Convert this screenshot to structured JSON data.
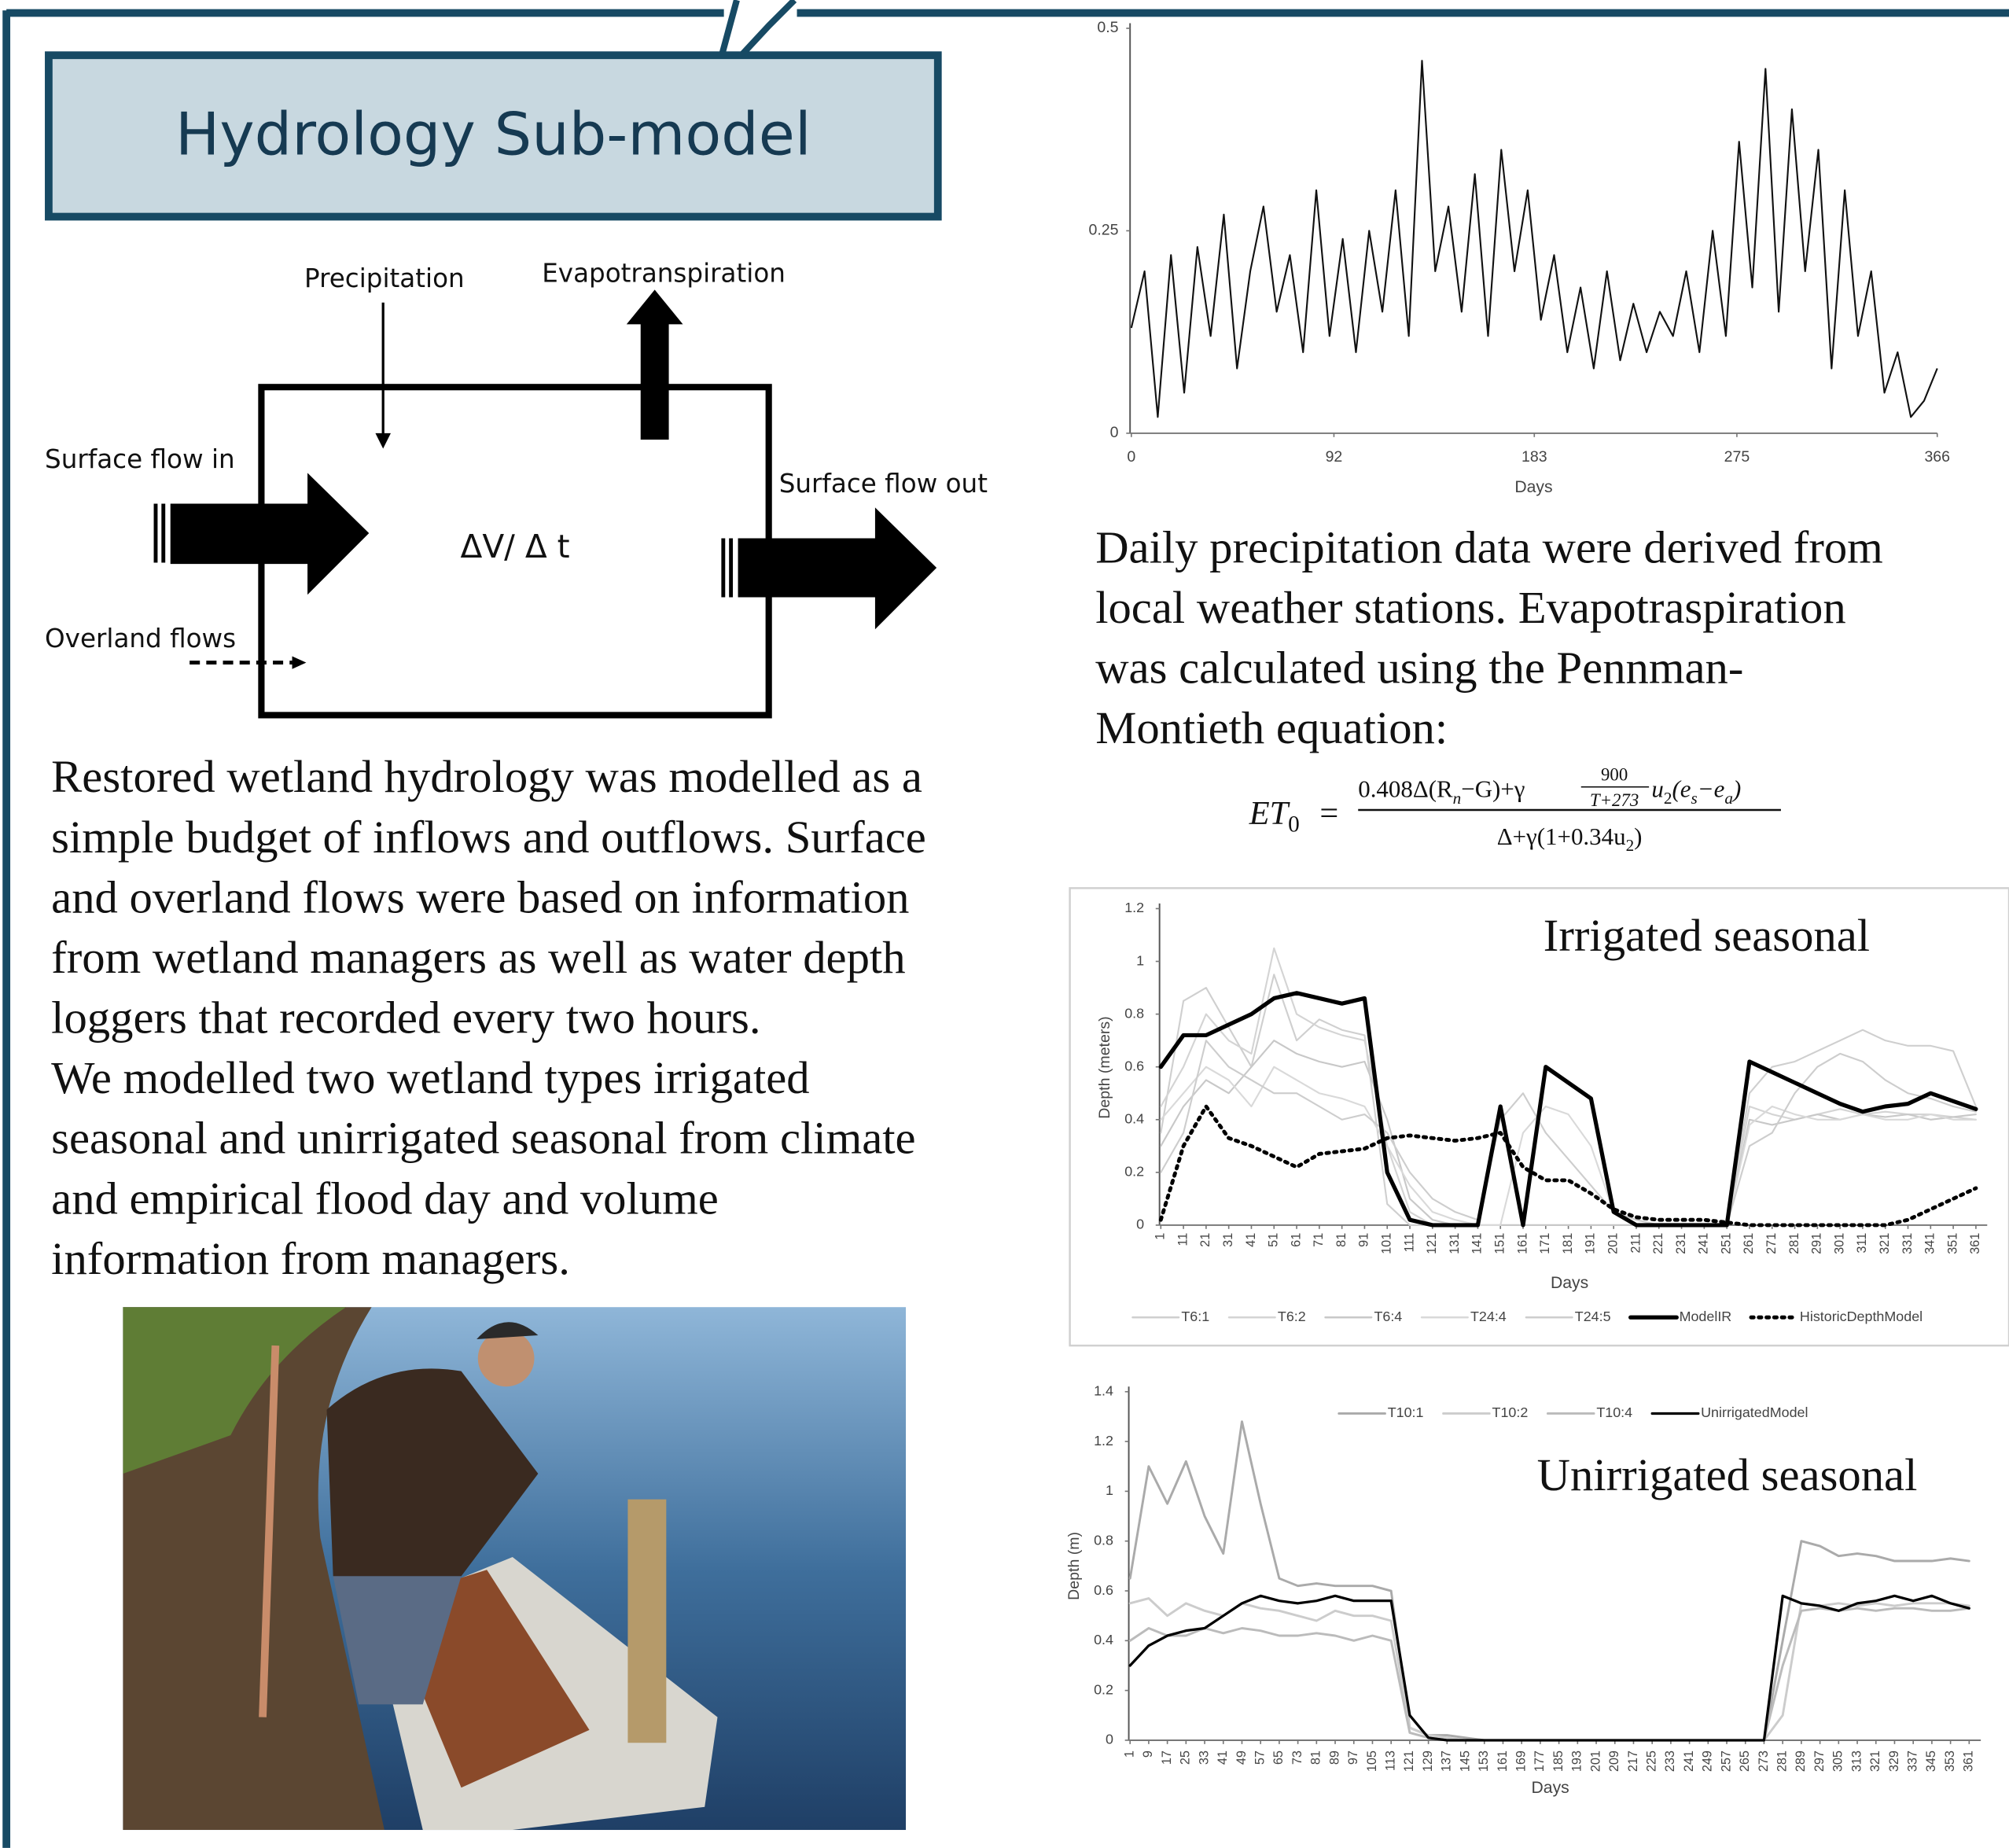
{
  "header": {
    "title": "Hydrology Sub-model"
  },
  "diagram": {
    "precipitation": "Precipitation",
    "evapotranspiration": "Evapotranspiration",
    "surface_in": "Surface flow in",
    "surface_out": "Surface flow out",
    "overland": "Overland flows",
    "storage": "ΔV/ Δ t"
  },
  "left_text": {
    "lines": [
      "Restored wetland hydrology was modelled as a",
      "simple budget of inflows and outflows. Surface",
      "and overland flows were based on information",
      "from wetland managers as well as water depth",
      "loggers that recorded every two hours.",
      "We modelled two wetland types irrigated",
      "seasonal and unirrigated seasonal from climate",
      "and empirical flood day and volume",
      "information from managers."
    ]
  },
  "right_text": {
    "lines": [
      "Daily precipitation data were derived from",
      "local weather stations. Evapotraspiration",
      "was calculated using the Pennman-",
      "Montieth equation:"
    ]
  },
  "equation": {
    "lhs": "ET",
    "lhs_sub": "0",
    "eq": "=",
    "num1": "0.408Δ(R",
    "num1_sub": "n",
    "num2": "−G)+γ",
    "frac_top": "900",
    "frac_bottom": "T+273",
    "num3": "u",
    "num3_sub": "2",
    "num4": "(e",
    "num4_sub": "s",
    "num5": "−e",
    "num5_sub": "a",
    "num6": ")",
    "den1": "Δ+γ(1+0.34u",
    "den1_sub": "2",
    "den2": ")"
  },
  "chart_data": [
    {
      "type": "line",
      "x_label": "Days",
      "color": "#111111",
      "x": [
        0,
        6,
        12,
        18,
        24,
        30,
        36,
        42,
        48,
        54,
        60,
        66,
        72,
        78,
        84,
        90,
        96,
        102,
        108,
        114,
        120,
        126,
        132,
        138,
        144,
        150,
        156,
        162,
        168,
        174,
        180,
        186,
        192,
        198,
        204,
        210,
        216,
        222,
        228,
        234,
        240,
        246,
        252,
        258,
        264,
        270,
        276,
        282,
        288,
        294,
        300,
        306,
        312,
        318,
        324,
        330,
        336,
        342,
        348,
        354,
        360,
        366
      ],
      "values": [
        0.13,
        0.2,
        0.02,
        0.22,
        0.05,
        0.23,
        0.12,
        0.27,
        0.08,
        0.2,
        0.28,
        0.15,
        0.22,
        0.1,
        0.3,
        0.12,
        0.24,
        0.1,
        0.25,
        0.15,
        0.3,
        0.12,
        0.46,
        0.2,
        0.28,
        0.15,
        0.32,
        0.12,
        0.35,
        0.2,
        0.3,
        0.14,
        0.22,
        0.1,
        0.18,
        0.08,
        0.2,
        0.09,
        0.16,
        0.1,
        0.15,
        0.12,
        0.2,
        0.1,
        0.25,
        0.12,
        0.36,
        0.18,
        0.45,
        0.15,
        0.4,
        0.2,
        0.35,
        0.08,
        0.3,
        0.12,
        0.2,
        0.05,
        0.1,
        0.02,
        0.04,
        0.08
      ],
      "xlim": [
        0,
        366
      ],
      "xticks": [
        0,
        92,
        183,
        275,
        366
      ],
      "ylim": [
        0,
        0.5
      ],
      "yticks": [
        0,
        0.25,
        0.5
      ]
    },
    {
      "type": "line",
      "title": "Irrigated seasonal",
      "x_label": "Days",
      "y_label": "Depth (meters)",
      "legend": "bottom",
      "x": [
        1,
        11,
        21,
        31,
        41,
        51,
        61,
        71,
        81,
        91,
        101,
        111,
        121,
        131,
        141,
        151,
        161,
        171,
        181,
        191,
        201,
        211,
        221,
        231,
        241,
        251,
        261,
        271,
        281,
        291,
        301,
        311,
        321,
        331,
        341,
        351,
        361
      ],
      "series": [
        {
          "name": "T6:1",
          "color": "#cfcfcf",
          "style": "solid",
          "line_width": 1.3,
          "values": [
            0.35,
            0.85,
            0.9,
            0.75,
            0.6,
            0.95,
            0.7,
            0.78,
            0.74,
            0.72,
            0.08,
            0,
            0,
            0,
            0,
            0,
            0,
            0,
            0,
            0,
            0,
            0,
            0,
            0,
            0,
            0,
            0.5,
            0.6,
            0.62,
            0.66,
            0.7,
            0.74,
            0.7,
            0.68,
            0.68,
            0.66,
            0.45
          ]
        },
        {
          "name": "T6:2",
          "color": "#d4d4d4",
          "style": "solid",
          "line_width": 1.3,
          "values": [
            0.45,
            0.6,
            0.8,
            0.7,
            0.65,
            1.05,
            0.8,
            0.75,
            0.72,
            0.7,
            0.3,
            0.05,
            0,
            0,
            0,
            0,
            0,
            0,
            0,
            0,
            0,
            0,
            0,
            0,
            0,
            0,
            0.45,
            0.42,
            0.4,
            0.42,
            0.44,
            0.42,
            0.43,
            0.42,
            0.42,
            0.41,
            0.4
          ]
        },
        {
          "name": "T6:4",
          "color": "#c8c8c8",
          "style": "solid",
          "line_width": 1.3,
          "values": [
            0.3,
            0.45,
            0.55,
            0.5,
            0.6,
            0.7,
            0.65,
            0.62,
            0.6,
            0.62,
            0.4,
            0.1,
            0.02,
            0,
            0,
            0,
            0,
            0,
            0,
            0,
            0,
            0,
            0,
            0,
            0,
            0,
            0.4,
            0.38,
            0.4,
            0.42,
            0.4,
            0.42,
            0.41,
            0.42,
            0.4,
            0.41,
            0.42
          ]
        },
        {
          "name": "T24:4",
          "color": "#d9d9d9",
          "style": "solid",
          "line_width": 1.3,
          "values": [
            0.4,
            0.5,
            0.6,
            0.55,
            0.45,
            0.6,
            0.55,
            0.5,
            0.48,
            0.45,
            0.3,
            0.15,
            0.05,
            0.02,
            0,
            0,
            0.35,
            0.45,
            0.42,
            0.3,
            0.05,
            0,
            0,
            0,
            0,
            0,
            0.38,
            0.45,
            0.42,
            0.4,
            0.4,
            0.42,
            0.4,
            0.4,
            0.42,
            0.4,
            0.4
          ]
        },
        {
          "name": "T24:5",
          "color": "#cdcdcd",
          "style": "solid",
          "line_width": 1.3,
          "values": [
            0.2,
            0.35,
            0.7,
            0.6,
            0.55,
            0.5,
            0.5,
            0.45,
            0.4,
            0.42,
            0.35,
            0.2,
            0.1,
            0.05,
            0.02,
            0.4,
            0.5,
            0.35,
            0.25,
            0.15,
            0.05,
            0.02,
            0,
            0,
            0,
            0,
            0.3,
            0.35,
            0.5,
            0.6,
            0.65,
            0.62,
            0.55,
            0.5,
            0.48,
            0.45,
            0.43
          ]
        },
        {
          "name": "ModelIR",
          "color": "#000000",
          "style": "solid",
          "line_width": 3.2,
          "values": [
            0.6,
            0.72,
            0.72,
            0.76,
            0.8,
            0.86,
            0.88,
            0.86,
            0.84,
            0.86,
            0.2,
            0.02,
            0,
            0,
            0,
            0.45,
            0,
            0.6,
            0.54,
            0.48,
            0.05,
            0,
            0,
            0,
            0,
            0,
            0.62,
            0.58,
            0.54,
            0.5,
            0.46,
            0.43,
            0.45,
            0.46,
            0.5,
            0.47,
            0.44
          ]
        },
        {
          "name": "HistoricDepthModel",
          "color": "#000000",
          "style": "dotted",
          "line_width": 3,
          "values": [
            0.02,
            0.3,
            0.45,
            0.33,
            0.3,
            0.26,
            0.22,
            0.27,
            0.28,
            0.29,
            0.33,
            0.34,
            0.33,
            0.32,
            0.33,
            0.35,
            0.22,
            0.17,
            0.17,
            0.12,
            0.06,
            0.03,
            0.02,
            0.02,
            0.02,
            0.01,
            0,
            0,
            0,
            0,
            0,
            0,
            0,
            0.02,
            0.06,
            0.1,
            0.14
          ]
        }
      ],
      "xlim": [
        1,
        366
      ],
      "xticks": [
        1,
        11,
        21,
        31,
        41,
        51,
        61,
        71,
        81,
        91,
        101,
        111,
        121,
        131,
        141,
        151,
        161,
        171,
        181,
        191,
        201,
        211,
        221,
        231,
        241,
        251,
        261,
        271,
        281,
        291,
        301,
        311,
        321,
        331,
        341,
        351,
        361
      ],
      "ylim": [
        0,
        1.2
      ],
      "yticks": [
        0,
        0.2,
        0.4,
        0.6,
        0.8,
        1,
        1.2
      ]
    },
    {
      "type": "line",
      "title": "Unirrigated seasonal",
      "x_label": "Days",
      "y_label": "Depth (m)",
      "legend": "top",
      "x": [
        1,
        9,
        17,
        25,
        33,
        41,
        49,
        57,
        65,
        73,
        81,
        89,
        97,
        105,
        113,
        121,
        129,
        137,
        145,
        153,
        161,
        169,
        177,
        185,
        193,
        201,
        209,
        217,
        225,
        233,
        241,
        249,
        257,
        265,
        273,
        281,
        289,
        297,
        305,
        313,
        321,
        329,
        337,
        345,
        353,
        361
      ],
      "series": [
        {
          "name": "T10:1",
          "color": "#aaaaaa",
          "style": "solid",
          "line_width": 1.8,
          "values": [
            0.65,
            1.1,
            0.95,
            1.12,
            0.9,
            0.75,
            1.28,
            0.95,
            0.65,
            0.62,
            0.63,
            0.62,
            0.62,
            0.62,
            0.6,
            0.05,
            0.02,
            0.02,
            0.01,
            0,
            0,
            0,
            0,
            0,
            0,
            0,
            0,
            0,
            0,
            0,
            0,
            0,
            0,
            0,
            0,
            0.4,
            0.8,
            0.78,
            0.74,
            0.75,
            0.74,
            0.72,
            0.72,
            0.72,
            0.73,
            0.72
          ]
        },
        {
          "name": "T10:2",
          "color": "#cccccc",
          "style": "solid",
          "line_width": 1.8,
          "values": [
            0.55,
            0.57,
            0.5,
            0.55,
            0.52,
            0.5,
            0.55,
            0.53,
            0.52,
            0.5,
            0.48,
            0.52,
            0.5,
            0.5,
            0.48,
            0.05,
            0.02,
            0.01,
            0,
            0,
            0,
            0,
            0,
            0,
            0,
            0,
            0,
            0,
            0,
            0,
            0,
            0,
            0,
            0,
            0,
            0.1,
            0.55,
            0.54,
            0.55,
            0.54,
            0.55,
            0.54,
            0.55,
            0.55,
            0.55,
            0.54
          ]
        },
        {
          "name": "T10:4",
          "color": "#bbbbbb",
          "style": "solid",
          "line_width": 1.8,
          "values": [
            0.4,
            0.45,
            0.42,
            0.42,
            0.45,
            0.43,
            0.45,
            0.44,
            0.42,
            0.42,
            0.43,
            0.42,
            0.4,
            0.42,
            0.4,
            0.03,
            0.01,
            0,
            0,
            0,
            0,
            0,
            0,
            0,
            0,
            0,
            0,
            0,
            0,
            0,
            0,
            0,
            0,
            0,
            0,
            0.3,
            0.52,
            0.53,
            0.52,
            0.53,
            0.52,
            0.53,
            0.53,
            0.52,
            0.52,
            0.53
          ]
        },
        {
          "name": "UnirrigatedModel",
          "color": "#000000",
          "style": "solid",
          "line_width": 2,
          "values": [
            0.3,
            0.38,
            0.42,
            0.44,
            0.45,
            0.5,
            0.55,
            0.58,
            0.56,
            0.55,
            0.56,
            0.58,
            0.56,
            0.56,
            0.56,
            0.1,
            0.01,
            0,
            0,
            0,
            0,
            0,
            0,
            0,
            0,
            0,
            0,
            0,
            0,
            0,
            0,
            0,
            0,
            0,
            0,
            0.58,
            0.55,
            0.54,
            0.52,
            0.55,
            0.56,
            0.58,
            0.56,
            0.58,
            0.55,
            0.53
          ]
        }
      ],
      "xlim": [
        1,
        366
      ],
      "xticks": [
        1,
        9,
        17,
        25,
        33,
        41,
        49,
        57,
        65,
        73,
        81,
        89,
        97,
        105,
        113,
        121,
        129,
        137,
        145,
        153,
        161,
        169,
        177,
        185,
        193,
        201,
        209,
        217,
        225,
        233,
        241,
        249,
        257,
        265,
        273,
        281,
        289,
        297,
        305,
        313,
        321,
        329,
        337,
        345,
        353,
        361
      ],
      "ylim": [
        0,
        1.4
      ],
      "yticks": [
        0,
        0.2,
        0.4,
        0.6,
        0.8,
        1,
        1.2,
        1.4
      ]
    }
  ]
}
